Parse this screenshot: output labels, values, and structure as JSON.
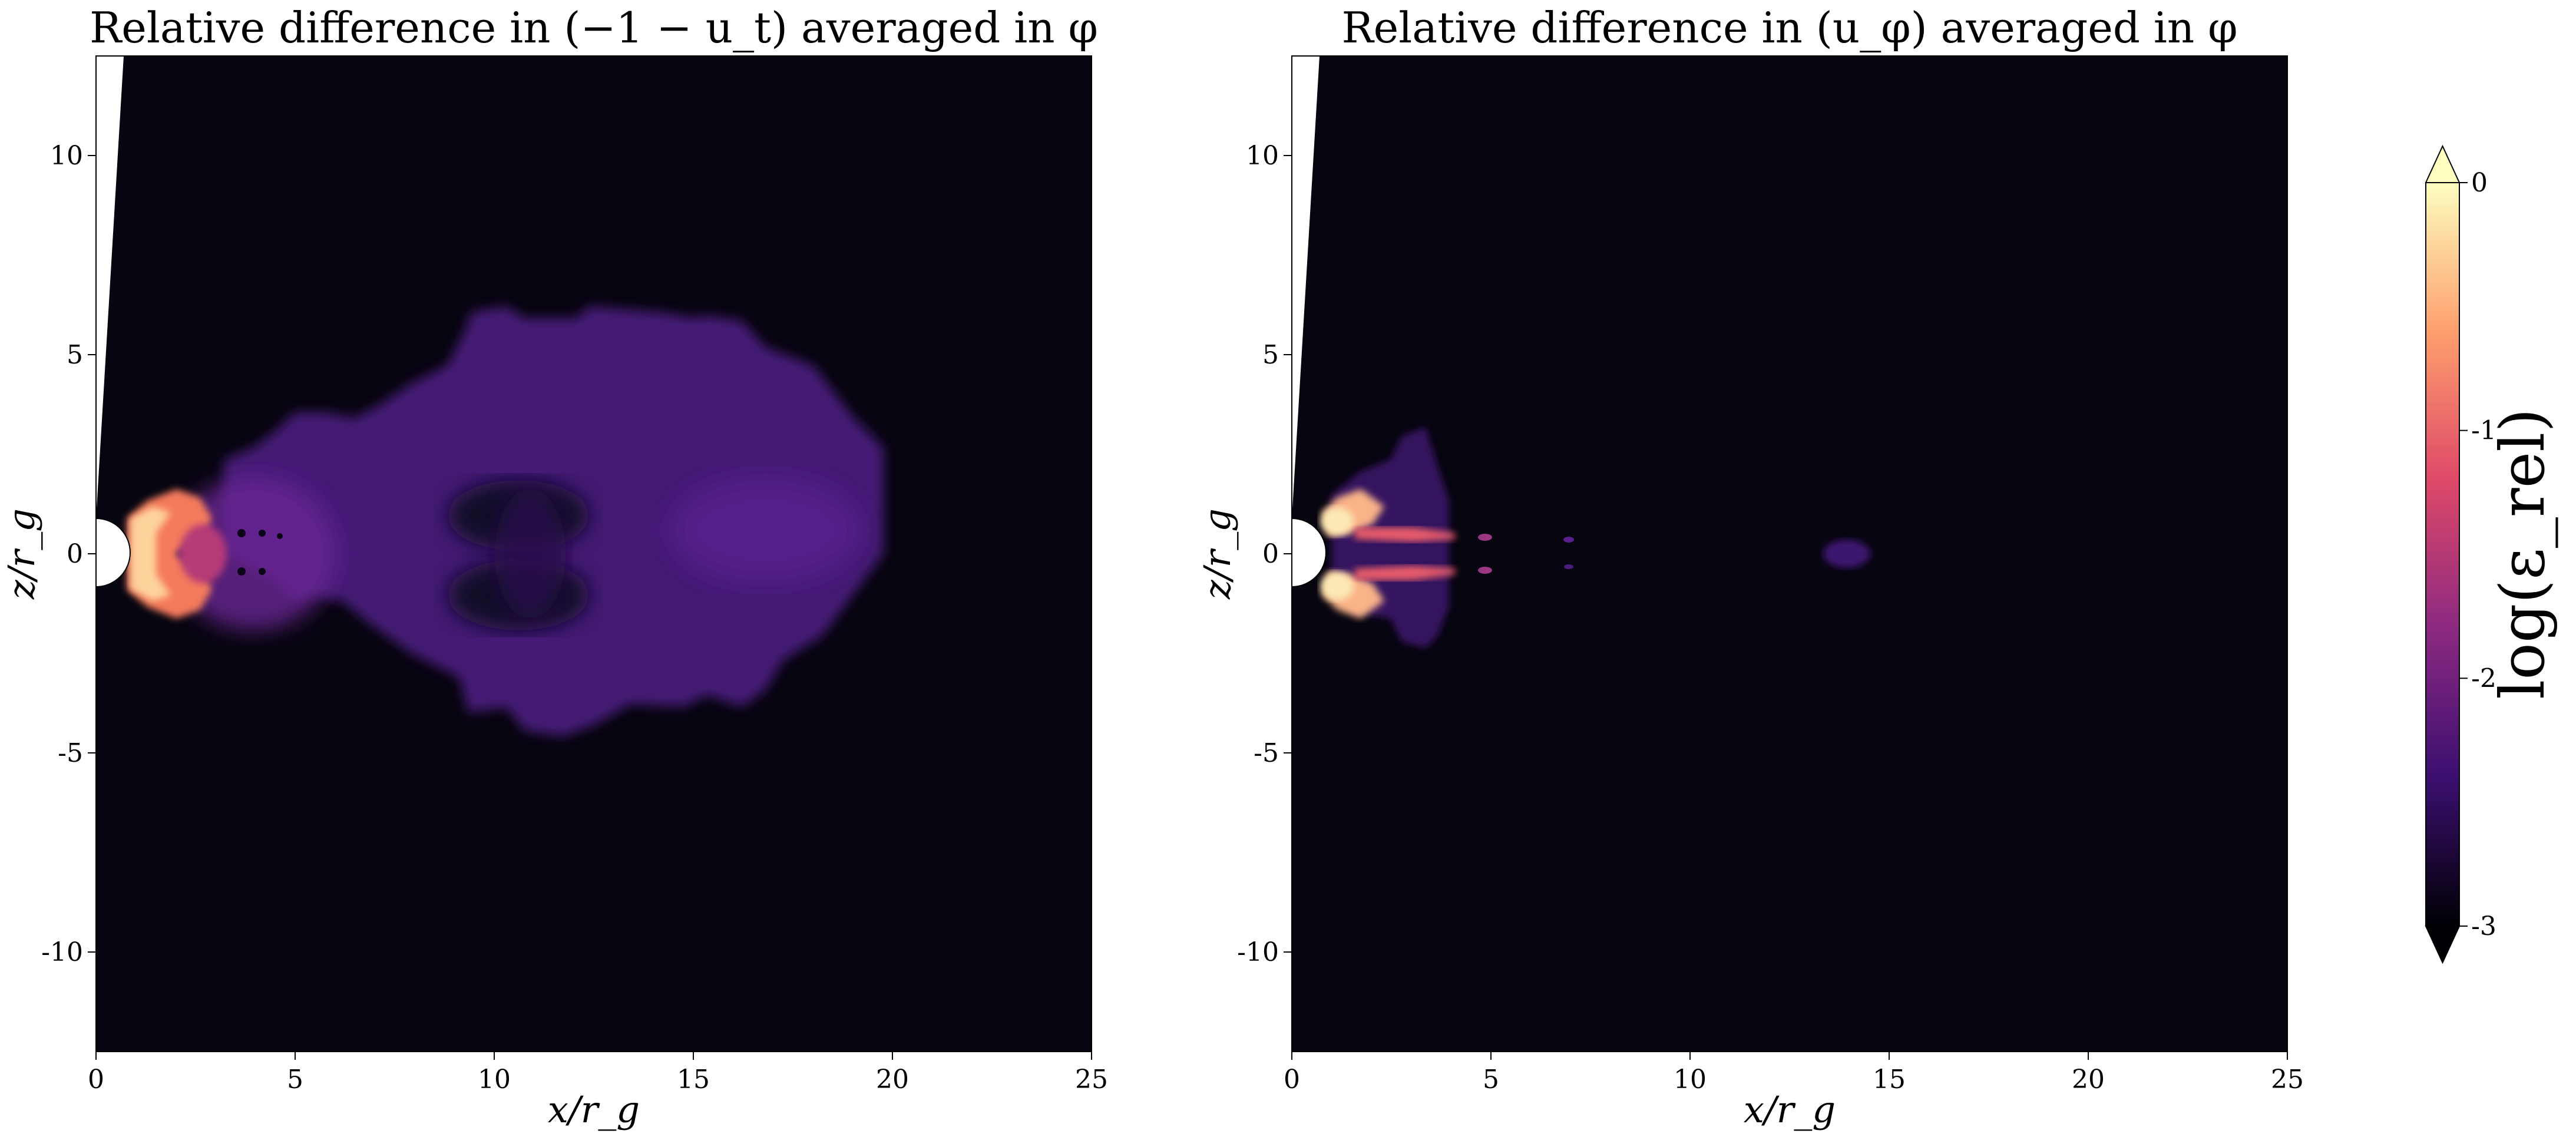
{
  "chart_data": [
    {
      "type": "heatmap",
      "title": "Relative difference in (−1 − u_t) averaged in φ",
      "xlabel": "x/r_g",
      "ylabel": "z/r_g",
      "xlim": [
        0,
        25
      ],
      "ylim": [
        -12.5,
        12.5
      ],
      "xticks": [
        0,
        5,
        10,
        15,
        20,
        25
      ],
      "yticks": [
        10,
        5,
        0,
        -5,
        -10
      ],
      "colormap": "magma",
      "features": [
        {
          "region": "horizon-adjacent jet",
          "x_range": [
            0.7,
            3.0
          ],
          "z_range": [
            -1.6,
            1.6
          ],
          "log_eps": -0.3
        },
        {
          "region": "inner lobe",
          "x_range": [
            2.5,
            8.5
          ],
          "z_range": [
            -2.6,
            2.6
          ],
          "log_eps": -1.75
        },
        {
          "region": "extended envelope",
          "x_range": [
            6.0,
            19.5
          ],
          "z_range": [
            -6.3,
            6.0
          ],
          "log_eps": -2.05
        },
        {
          "region": "voids",
          "x_range": [
            8.5,
            11.5
          ],
          "z_range": [
            -2.0,
            2.0
          ],
          "log_eps": -2.8
        }
      ]
    },
    {
      "type": "heatmap",
      "title": "Relative difference in (u_φ) averaged in φ",
      "xlabel": "x/r_g",
      "ylabel": "z/r_g",
      "xlim": [
        0,
        25
      ],
      "ylim": [
        -12.5,
        12.5
      ],
      "xticks": [
        0,
        5,
        10,
        15,
        20,
        25
      ],
      "yticks": [
        10,
        5,
        0,
        -5,
        -10
      ],
      "colormap": "magma",
      "features": [
        {
          "region": "horizon-adjacent lobes",
          "x_range": [
            0.7,
            3.0
          ],
          "z_range": [
            -1.8,
            1.8
          ],
          "log_eps": -0.2
        },
        {
          "region": "jet tendrils",
          "x_range": [
            2.0,
            5.0
          ],
          "z_range": [
            -0.5,
            0.5
          ],
          "log_eps": -1.0
        },
        {
          "region": "blob",
          "x_range": [
            13.3,
            14.6
          ],
          "z_range": [
            -0.3,
            0.3
          ],
          "log_eps": -2.3
        }
      ]
    }
  ],
  "colorbar": {
    "label": "log(ε_rel)",
    "range": [
      -3,
      0
    ],
    "ticks": [
      0,
      -1,
      -2,
      -3
    ],
    "extend": "both",
    "stops": [
      "#000004",
      "#3b0f70",
      "#8c2981",
      "#de4968",
      "#fe9f6d",
      "#fcfdbf"
    ]
  }
}
